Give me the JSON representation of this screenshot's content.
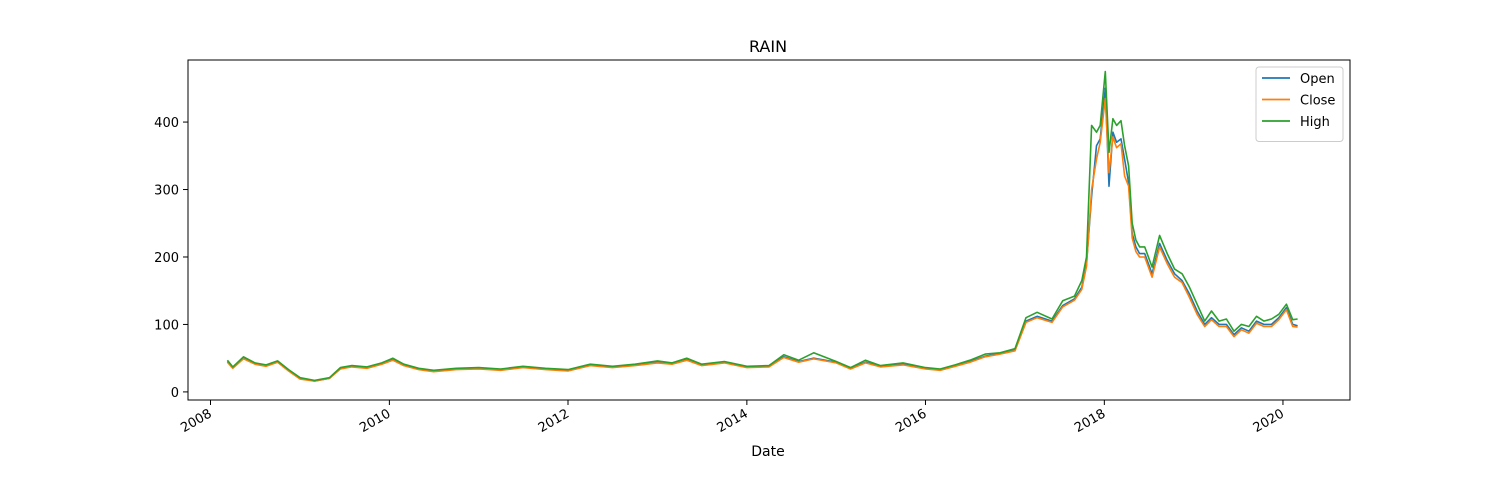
{
  "chart_data": {
    "type": "line",
    "title": "RAIN",
    "xlabel": "Date",
    "ylabel": "",
    "x_axis_type": "date",
    "xlim": [
      "2007-10-01",
      "2020-10-01"
    ],
    "ylim": [
      -12,
      492
    ],
    "x_ticks": [
      {
        "date": "2008-01-01",
        "label": "2008"
      },
      {
        "date": "2010-01-01",
        "label": "2010"
      },
      {
        "date": "2012-01-01",
        "label": "2012"
      },
      {
        "date": "2014-01-01",
        "label": "2014"
      },
      {
        "date": "2016-01-01",
        "label": "2016"
      },
      {
        "date": "2018-01-01",
        "label": "2018"
      },
      {
        "date": "2020-01-01",
        "label": "2020"
      }
    ],
    "y_ticks": [
      0,
      100,
      200,
      300,
      400
    ],
    "grid": false,
    "legend_position": "top-right",
    "x": [
      "2008-03-10",
      "2008-04-01",
      "2008-05-15",
      "2008-07-01",
      "2008-08-15",
      "2008-10-01",
      "2008-11-15",
      "2009-01-01",
      "2009-03-01",
      "2009-05-01",
      "2009-06-15",
      "2009-08-01",
      "2009-10-01",
      "2009-12-01",
      "2010-01-15",
      "2010-03-01",
      "2010-05-01",
      "2010-07-01",
      "2010-10-01",
      "2011-01-01",
      "2011-04-01",
      "2011-07-01",
      "2011-10-01",
      "2012-01-01",
      "2012-04-01",
      "2012-07-01",
      "2012-10-01",
      "2013-01-01",
      "2013-03-01",
      "2013-05-01",
      "2013-07-01",
      "2013-10-01",
      "2014-01-01",
      "2014-04-01",
      "2014-06-01",
      "2014-08-01",
      "2014-10-01",
      "2015-01-01",
      "2015-03-01",
      "2015-05-01",
      "2015-07-01",
      "2015-10-01",
      "2016-01-01",
      "2016-03-01",
      "2016-05-01",
      "2016-07-01",
      "2016-09-01",
      "2016-11-01",
      "2017-01-01",
      "2017-02-15",
      "2017-04-01",
      "2017-06-01",
      "2017-07-15",
      "2017-09-01",
      "2017-10-01",
      "2017-10-20",
      "2017-11-10",
      "2017-11-30",
      "2017-12-15",
      "2018-01-05",
      "2018-01-20",
      "2018-02-05",
      "2018-02-20",
      "2018-03-10",
      "2018-03-25",
      "2018-04-10",
      "2018-04-25",
      "2018-05-10",
      "2018-05-25",
      "2018-06-15",
      "2018-07-15",
      "2018-08-15",
      "2018-09-15",
      "2018-10-15",
      "2018-11-15",
      "2018-12-15",
      "2019-01-15",
      "2019-02-15",
      "2019-03-15",
      "2019-04-15",
      "2019-05-15",
      "2019-06-15",
      "2019-07-15",
      "2019-08-15",
      "2019-09-15",
      "2019-10-15",
      "2019-11-15",
      "2019-12-15",
      "2020-01-15",
      "2020-02-10",
      "2020-03-01"
    ],
    "series": [
      {
        "name": "Open",
        "color": "#1f77b4",
        "values": [
          45,
          36,
          50,
          42,
          39,
          45,
          32,
          20,
          16,
          20,
          35,
          38,
          36,
          42,
          48,
          40,
          34,
          31,
          34,
          35,
          33,
          37,
          34,
          32,
          40,
          37,
          40,
          44,
          42,
          48,
          40,
          44,
          37,
          38,
          52,
          45,
          50,
          44,
          35,
          44,
          38,
          41,
          35,
          33,
          39,
          45,
          53,
          57,
          62,
          105,
          112,
          105,
          128,
          138,
          155,
          190,
          290,
          365,
          375,
          450,
          305,
          385,
          370,
          375,
          345,
          310,
          235,
          215,
          205,
          205,
          175,
          220,
          195,
          175,
          165,
          145,
          120,
          100,
          110,
          100,
          100,
          85,
          95,
          90,
          105,
          100,
          100,
          110,
          125,
          100,
          98
        ]
      },
      {
        "name": "Close",
        "color": "#ff7f0e",
        "values": [
          44,
          35,
          49,
          41,
          38,
          44,
          31,
          19,
          16,
          20,
          34,
          37,
          35,
          41,
          47,
          39,
          33,
          30,
          33,
          34,
          32,
          36,
          33,
          31,
          39,
          36,
          39,
          43,
          41,
          47,
          39,
          43,
          36,
          37,
          51,
          44,
          49,
          43,
          34,
          43,
          37,
          40,
          34,
          32,
          38,
          44,
          52,
          56,
          61,
          103,
          110,
          103,
          126,
          136,
          152,
          186,
          300,
          345,
          370,
          435,
          325,
          378,
          362,
          368,
          320,
          305,
          228,
          208,
          200,
          200,
          170,
          215,
          190,
          170,
          162,
          140,
          115,
          97,
          107,
          97,
          97,
          82,
          92,
          87,
          102,
          97,
          97,
          107,
          122,
          97,
          96
        ]
      },
      {
        "name": "High",
        "color": "#2ca02c",
        "values": [
          47,
          37,
          52,
          43,
          40,
          46,
          33,
          21,
          17,
          21,
          36,
          39,
          37,
          43,
          50,
          41,
          35,
          32,
          35,
          36,
          34,
          38,
          35,
          33,
          41,
          38,
          41,
          46,
          43,
          50,
          41,
          45,
          38,
          39,
          55,
          47,
          58,
          45,
          36,
          47,
          39,
          43,
          36,
          34,
          40,
          47,
          56,
          58,
          64,
          110,
          118,
          108,
          135,
          142,
          165,
          200,
          395,
          385,
          395,
          475,
          355,
          405,
          395,
          402,
          365,
          335,
          250,
          225,
          215,
          215,
          185,
          232,
          205,
          182,
          175,
          155,
          130,
          105,
          120,
          105,
          108,
          90,
          100,
          97,
          112,
          105,
          108,
          115,
          130,
          107,
          108
        ]
      }
    ]
  }
}
